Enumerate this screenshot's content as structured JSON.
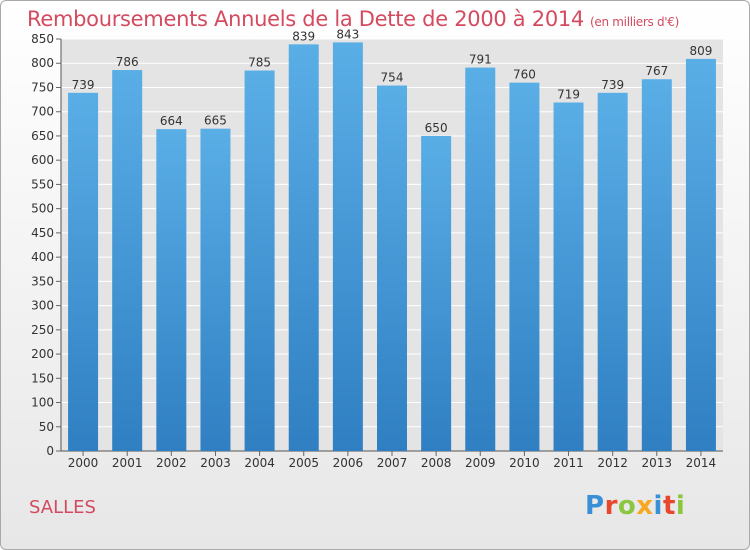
{
  "title": "Remboursements Annuels de la Dette de 2000 à 2014",
  "unit": "(en milliers d'€)",
  "place": "SALLES",
  "logo": {
    "text": "Proxiti",
    "colors": [
      "#3b8fd6",
      "#e8472d",
      "#8cc63f",
      "#f7a823",
      "#3b8fd6",
      "#e8472d",
      "#8cc63f"
    ]
  },
  "chart_data": {
    "type": "bar",
    "categories": [
      "2000",
      "2001",
      "2002",
      "2003",
      "2004",
      "2005",
      "2006",
      "2007",
      "2008",
      "2009",
      "2010",
      "2011",
      "2012",
      "2013",
      "2014"
    ],
    "values": [
      739,
      786,
      664,
      665,
      785,
      839,
      843,
      754,
      650,
      791,
      760,
      719,
      739,
      767,
      809
    ],
    "title": "Remboursements Annuels de la Dette de 2000 à 2014",
    "xlabel": "",
    "ylabel": "",
    "ylim": [
      0,
      850
    ],
    "ytick_step": 50,
    "grid": true,
    "legend": "none",
    "colors": {
      "bar_top": "#5aaee6",
      "bar_bottom": "#2f7fc2",
      "grid": "#ffffff",
      "plot_bg": "#e4e4e4"
    }
  }
}
